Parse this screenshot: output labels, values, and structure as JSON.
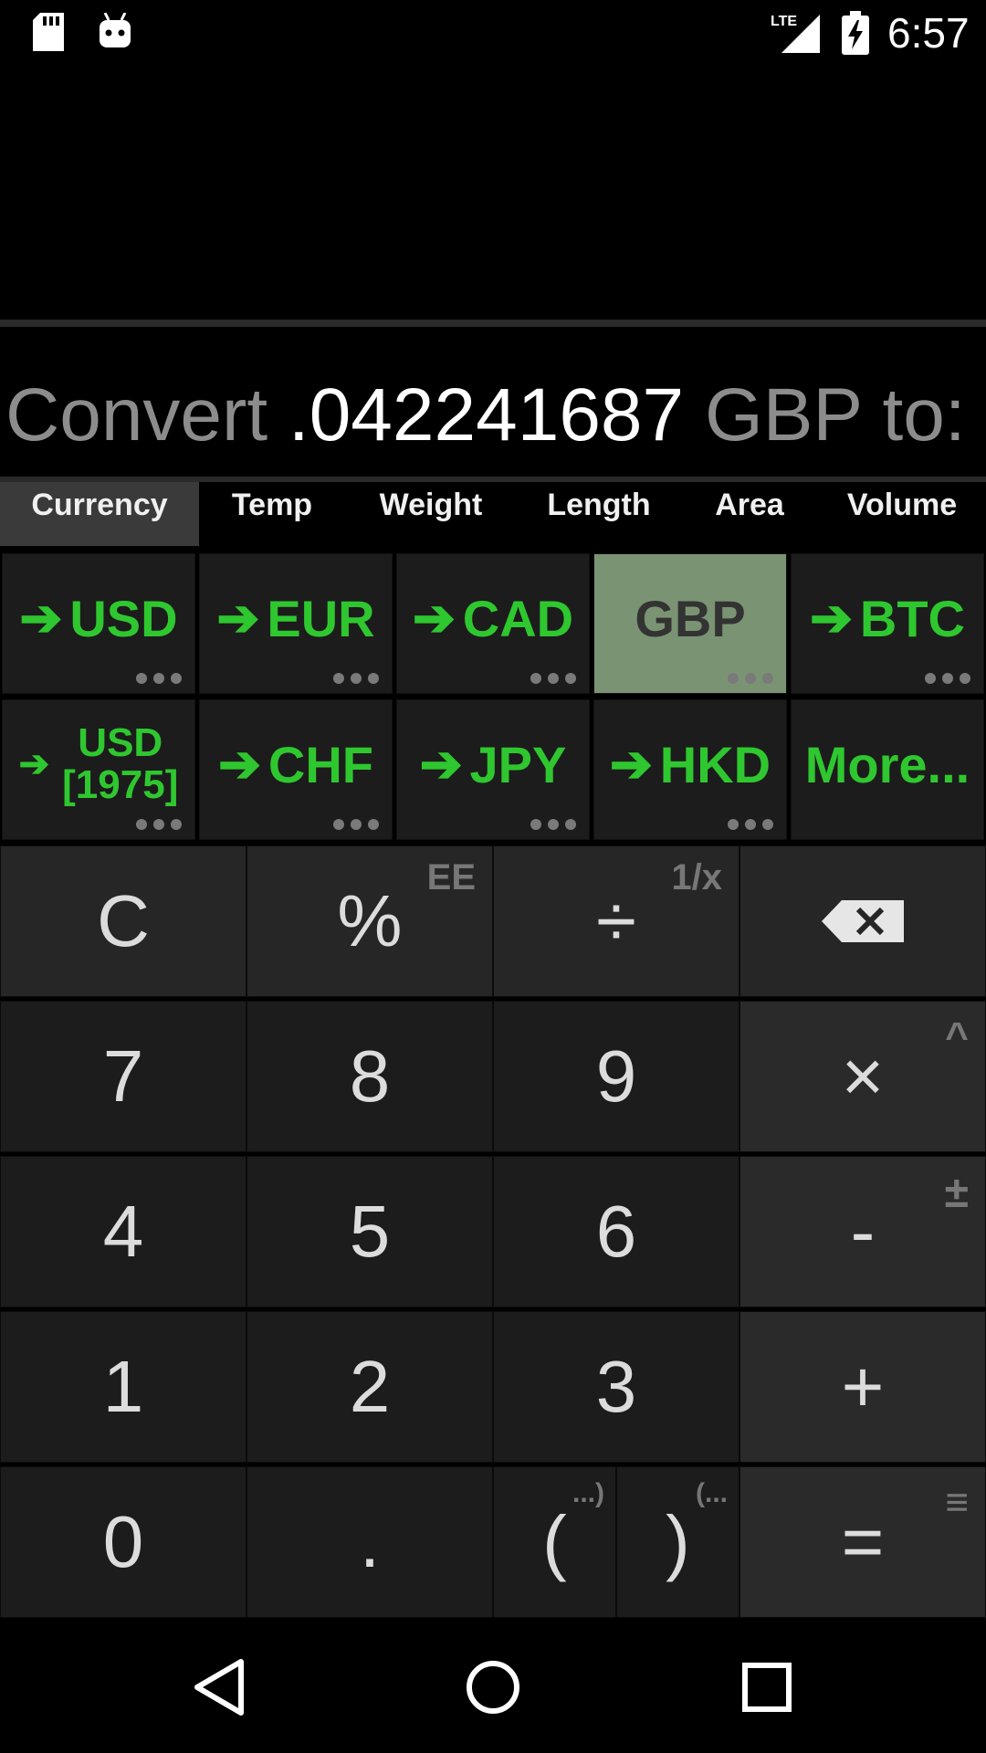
{
  "status_bar": {
    "time": "6:57",
    "network": "LTE"
  },
  "display": {
    "prefix": "Convert",
    "value": ".042241687",
    "unit": "GBP",
    "suffix": "to:"
  },
  "tabs": [
    {
      "label": "Currency",
      "active": true
    },
    {
      "label": "Temp"
    },
    {
      "label": "Weight"
    },
    {
      "label": "Length"
    },
    {
      "label": "Area"
    },
    {
      "label": "Volume"
    }
  ],
  "currencies_row1": [
    {
      "label": "USD",
      "arrow": "➔"
    },
    {
      "label": "EUR",
      "arrow": "➔"
    },
    {
      "label": "CAD",
      "arrow": "➔"
    },
    {
      "label": "GBP",
      "arrow": "",
      "selected": true
    },
    {
      "label": "BTC",
      "arrow": "➔"
    }
  ],
  "currencies_row2": [
    {
      "label_line1": "USD",
      "label_line2": "[1975]",
      "arrow": "➔"
    },
    {
      "label": "CHF",
      "arrow": "➔"
    },
    {
      "label": "JPY",
      "arrow": "➔"
    },
    {
      "label": "HKD",
      "arrow": "➔"
    },
    {
      "label": "More..."
    }
  ],
  "keypad": {
    "clear": "C",
    "percent": "%",
    "percent_alt": "EE",
    "divide": "÷",
    "divide_alt": "1/x",
    "multiply": "×",
    "multiply_alt": "^",
    "minus": "-",
    "minus_alt": "±",
    "plus": "+",
    "equals": "=",
    "equals_alt": "≡",
    "digits": [
      "0",
      "1",
      "2",
      "3",
      "4",
      "5",
      "6",
      "7",
      "8",
      "9"
    ],
    "decimal": ".",
    "open_paren": "(",
    "open_paren_alt": "...)",
    "close_paren": ")",
    "close_paren_alt": "(..."
  },
  "colors": {
    "accent_green": "#2fc72f",
    "selected_bg": "#7a9473"
  }
}
